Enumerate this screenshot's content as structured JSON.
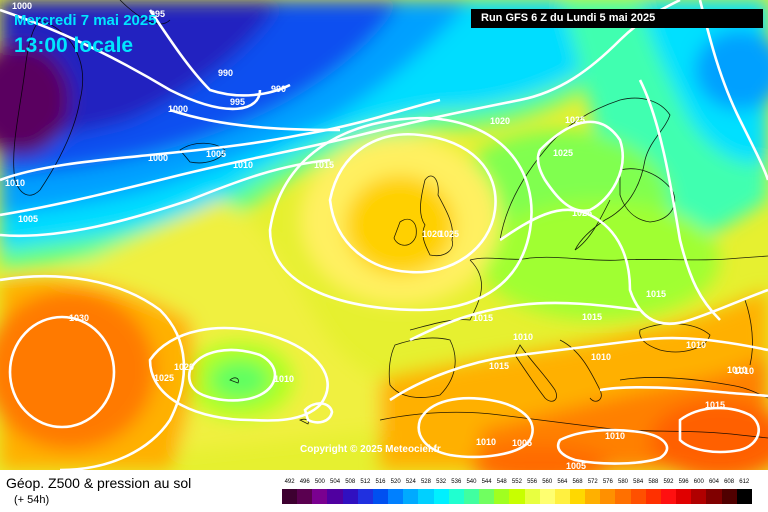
{
  "header": {
    "date": "Mercredi 7 mai 2025",
    "time": "13:00 locale",
    "run": "Run GFS 6 Z du Lundi 5 mai 2025"
  },
  "footer": {
    "title": "Géop. Z500 & pression au sol",
    "subtitle": "(+ 54h)",
    "copyright": "Copyright © 2025 Meteociel.fr"
  },
  "scale": {
    "labels": [
      "492",
      "496",
      "500",
      "504",
      "508",
      "512",
      "516",
      "520",
      "524",
      "528",
      "532",
      "536",
      "540",
      "544",
      "548",
      "552",
      "556",
      "560",
      "564",
      "568",
      "572",
      "576",
      "580",
      "584",
      "588",
      "592",
      "596",
      "600",
      "604",
      "608",
      "612"
    ],
    "colors": [
      "#3d0030",
      "#5a0050",
      "#7a0090",
      "#5000a0",
      "#3010c0",
      "#2030e0",
      "#0050f0",
      "#0080ff",
      "#00aaff",
      "#00d0ff",
      "#00f0ff",
      "#20ffd0",
      "#40ffa0",
      "#70ff60",
      "#a0ff20",
      "#c8ff00",
      "#e8ff40",
      "#ffff70",
      "#fff040",
      "#ffd800",
      "#ffb000",
      "#ff9000",
      "#ff7000",
      "#ff5000",
      "#ff3000",
      "#ff1010",
      "#e00000",
      "#b00000",
      "#800000",
      "#500000",
      "#000000"
    ]
  },
  "isobars": [
    {
      "text": "1000",
      "label": "isobar-1000-a"
    },
    {
      "text": "995",
      "label": "isobar-995-a"
    },
    {
      "text": "990",
      "label": "isobar-990-a"
    },
    {
      "text": "995",
      "label": "isobar-995-b"
    },
    {
      "text": "990",
      "label": "isobar-990-b"
    },
    {
      "text": "1000",
      "label": "isobar-1000-b"
    },
    {
      "text": "1005",
      "label": "isobar-1005-a"
    },
    {
      "text": "1010",
      "label": "isobar-1010-a"
    },
    {
      "text": "1000",
      "label": "isobar-1000-c"
    },
    {
      "text": "1015",
      "label": "isobar-1015-a"
    },
    {
      "text": "1020",
      "label": "isobar-1020-a"
    },
    {
      "text": "1025",
      "label": "isobar-1025-a"
    },
    {
      "text": "1025",
      "label": "isobar-1025-b"
    },
    {
      "text": "1010",
      "label": "isobar-1010-b"
    },
    {
      "text": "1005",
      "label": "isobar-1005-b"
    },
    {
      "text": "1020",
      "label": "isobar-1020-b"
    },
    {
      "text": "1025",
      "label": "isobar-1025-c"
    },
    {
      "text": "1025",
      "label": "isobar-1025-d"
    },
    {
      "text": "1015",
      "label": "isobar-1015-b"
    },
    {
      "text": "1015",
      "label": "isobar-1015-c"
    },
    {
      "text": "1015",
      "label": "isobar-1015-d"
    },
    {
      "text": "1010",
      "label": "isobar-1010-c"
    },
    {
      "text": "1010",
      "label": "isobar-1010-d"
    },
    {
      "text": "1010",
      "label": "isobar-1010-e"
    },
    {
      "text": "1030",
      "label": "isobar-1030"
    },
    {
      "text": "1020",
      "label": "isobar-1020-c"
    },
    {
      "text": "1025",
      "label": "isobar-1025-e"
    },
    {
      "text": "1010",
      "label": "isobar-1010-f"
    },
    {
      "text": "1015",
      "label": "isobar-1015-e"
    },
    {
      "text": "1010",
      "label": "isobar-1010-g"
    },
    {
      "text": "1015",
      "label": "isobar-1015-f"
    },
    {
      "text": "1010",
      "label": "isobar-1010-h"
    },
    {
      "text": "1005",
      "label": "isobar-1005-c"
    },
    {
      "text": "1010",
      "label": "isobar-1010-i"
    },
    {
      "text": "1005",
      "label": "isobar-1005-d"
    },
    {
      "text": "1010",
      "label": "isobar-1010-j"
    },
    {
      "text": "1010",
      "label": "isobar-1010-k"
    }
  ]
}
